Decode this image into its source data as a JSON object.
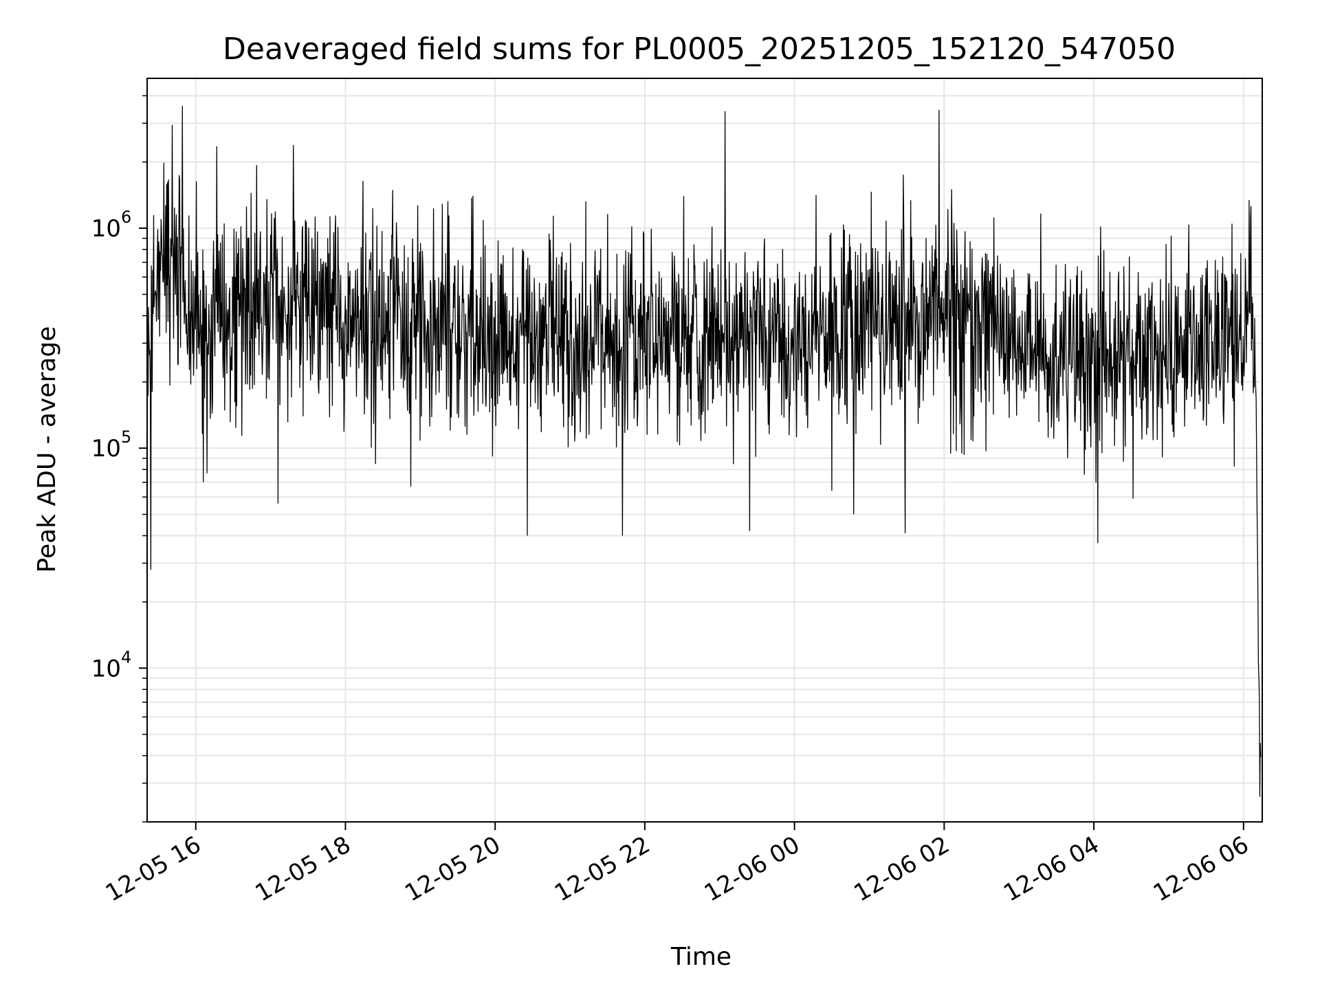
{
  "chart_data": {
    "type": "line",
    "title": "Deaveraged field sums for PL0005_20251205_152120_547050",
    "xlabel": "Time",
    "ylabel": "Peak ADU - average",
    "yscale": "log",
    "ylim": [
      2000,
      4800000
    ],
    "xlim_hours": [
      15.35,
      30.25
    ],
    "x_ticks": [
      {
        "hours": 16,
        "label": "12-05 16"
      },
      {
        "hours": 18,
        "label": "12-05 18"
      },
      {
        "hours": 20,
        "label": "12-05 20"
      },
      {
        "hours": 22,
        "label": "12-05 22"
      },
      {
        "hours": 24,
        "label": "12-06 00"
      },
      {
        "hours": 26,
        "label": "12-06 02"
      },
      {
        "hours": 28,
        "label": "12-06 04"
      },
      {
        "hours": 30,
        "label": "12-06 06"
      }
    ],
    "y_ticks": [
      {
        "value": 10000,
        "base": "10",
        "exp": "4"
      },
      {
        "value": 100000,
        "base": "10",
        "exp": "5"
      },
      {
        "value": 1000000,
        "base": "10",
        "exp": "6"
      }
    ],
    "grid": true,
    "line_color": "#000000",
    "series": [
      {
        "name": "deaveraged field sum",
        "profile_hours": [
          15.35,
          15.5,
          15.75,
          16.0,
          16.5,
          17.0,
          17.5,
          18.0,
          19.0,
          20.0,
          21.0,
          22.0,
          23.0,
          24.0,
          25.0,
          26.0,
          27.0,
          27.5,
          28.0,
          29.0,
          29.8,
          30.0,
          30.12,
          30.17,
          30.2,
          30.23
        ],
        "profile_median": [
          250000,
          700000,
          800000,
          360000,
          380000,
          480000,
          420000,
          400000,
          360000,
          330000,
          320000,
          340000,
          330000,
          320000,
          330000,
          420000,
          330000,
          290000,
          250000,
          280000,
          300000,
          450000,
          500000,
          150000,
          10000,
          4000
        ],
        "spread_decades": 0.42,
        "sample_count": 2400,
        "extremes": [
          {
            "hours": 15.4,
            "value": 28000
          },
          {
            "hours": 15.82,
            "value": 3600000
          },
          {
            "hours": 16.1,
            "value": 70000
          },
          {
            "hours": 17.1,
            "value": 56000
          },
          {
            "hours": 20.43,
            "value": 40000
          },
          {
            "hours": 21.7,
            "value": 40000
          },
          {
            "hours": 23.07,
            "value": 3400000
          },
          {
            "hours": 23.4,
            "value": 42000
          },
          {
            "hours": 25.48,
            "value": 41000
          },
          {
            "hours": 25.93,
            "value": 3450000
          },
          {
            "hours": 28.05,
            "value": 37000
          },
          {
            "hours": 30.22,
            "value": 2600
          }
        ]
      }
    ]
  }
}
